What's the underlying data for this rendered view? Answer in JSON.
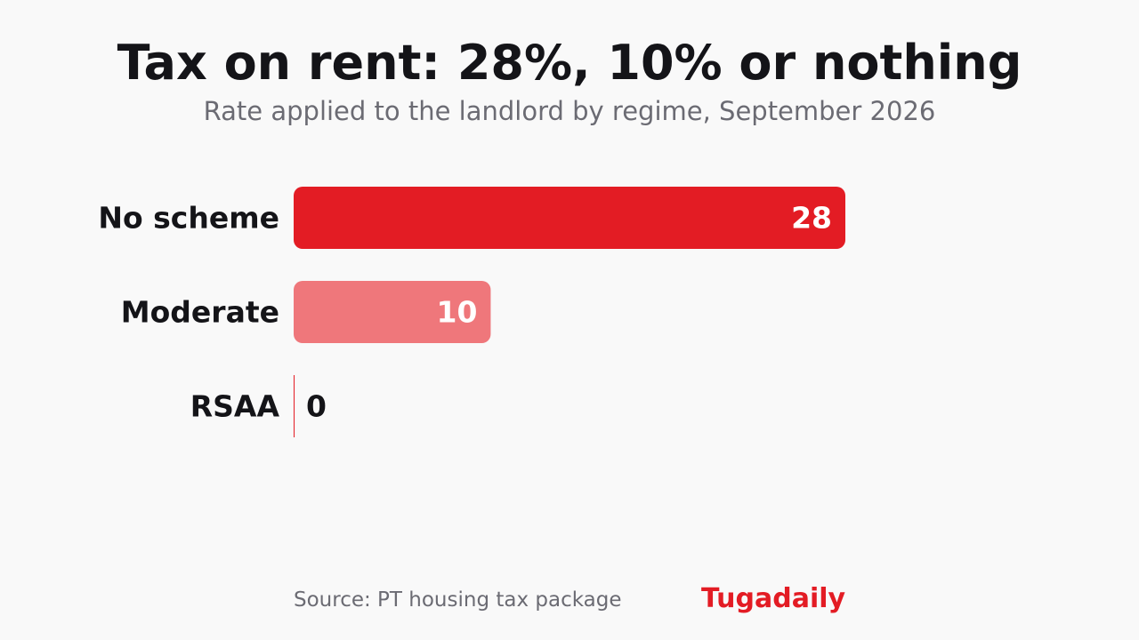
{
  "chart_data": {
    "type": "bar",
    "orientation": "horizontal",
    "title": "Tax on rent: 28%, 10% or nothing",
    "subtitle": "Rate applied to the landlord by regime, September 2026",
    "categories": [
      "No scheme",
      "Moderate",
      "RSAA"
    ],
    "values": [
      28,
      10,
      0
    ],
    "xlim": [
      0,
      28
    ],
    "grid": false,
    "colors": {
      "primary": "#e31c24",
      "secondary": "#ef777b",
      "zero": "#e31c24",
      "value_label_inside": "#ffffff",
      "value_label_outside": "#141418"
    }
  },
  "footer": {
    "source": "Source: PT housing tax package",
    "brand": "Tugadaily"
  }
}
